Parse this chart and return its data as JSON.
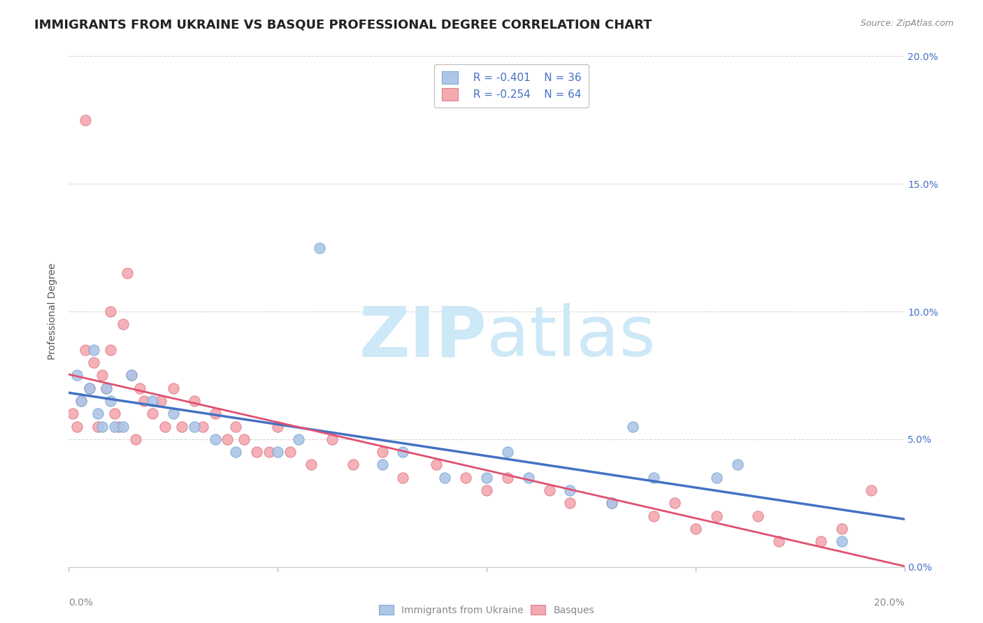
{
  "title": "IMMIGRANTS FROM UKRAINE VS BASQUE PROFESSIONAL DEGREE CORRELATION CHART",
  "source": "Source: ZipAtlas.com",
  "ylabel_left": "Professional Degree",
  "x_tick_labels": [
    "0.0%",
    "5.0%",
    "10.0%",
    "15.0%",
    "20.0%"
  ],
  "x_tick_values": [
    0.0,
    5.0,
    10.0,
    15.0,
    20.0
  ],
  "y_tick_labels": [
    "0.0%",
    "5.0%",
    "10.0%",
    "15.0%",
    "20.0%"
  ],
  "y_tick_values": [
    0.0,
    5.0,
    10.0,
    15.0,
    20.0
  ],
  "xlim": [
    0.0,
    20.0
  ],
  "ylim": [
    0.0,
    20.0
  ],
  "legend_entries": [
    {
      "label": "Immigrants from Ukraine",
      "R": "-0.401",
      "N": "36",
      "color": "#aec6e8"
    },
    {
      "label": "Basques",
      "R": "-0.254",
      "N": "64",
      "color": "#f4a9b0"
    }
  ],
  "ukraine_scatter_x": [
    0.2,
    0.3,
    0.5,
    0.6,
    0.7,
    0.8,
    0.9,
    1.0,
    1.1,
    1.3,
    1.5,
    2.0,
    2.5,
    3.0,
    3.5,
    4.0,
    5.0,
    5.5,
    6.0,
    7.5,
    8.0,
    9.0,
    10.0,
    10.5,
    11.0,
    12.0,
    13.0,
    13.5,
    14.0,
    15.5,
    16.0,
    18.5
  ],
  "ukraine_scatter_y": [
    7.5,
    6.5,
    7.0,
    8.5,
    6.0,
    5.5,
    7.0,
    6.5,
    5.5,
    5.5,
    7.5,
    6.5,
    6.0,
    5.5,
    5.0,
    4.5,
    4.5,
    5.0,
    12.5,
    4.0,
    4.5,
    3.5,
    3.5,
    4.5,
    3.5,
    3.0,
    2.5,
    5.5,
    3.5,
    3.5,
    4.0,
    1.0
  ],
  "basque_scatter_x": [
    0.1,
    0.2,
    0.3,
    0.4,
    0.4,
    0.5,
    0.6,
    0.7,
    0.8,
    0.9,
    1.0,
    1.0,
    1.1,
    1.2,
    1.3,
    1.4,
    1.5,
    1.6,
    1.7,
    1.8,
    2.0,
    2.2,
    2.3,
    2.5,
    2.7,
    3.0,
    3.2,
    3.5,
    3.8,
    4.0,
    4.2,
    4.5,
    4.8,
    5.0,
    5.3,
    5.8,
    6.3,
    6.8,
    7.5,
    8.0,
    8.8,
    9.5,
    10.0,
    10.5,
    11.5,
    12.0,
    13.0,
    14.0,
    14.5,
    15.0,
    15.5,
    16.5,
    17.0,
    18.0,
    18.5,
    19.2
  ],
  "basque_scatter_y": [
    6.0,
    5.5,
    6.5,
    8.5,
    17.5,
    7.0,
    8.0,
    5.5,
    7.5,
    7.0,
    10.0,
    8.5,
    6.0,
    5.5,
    9.5,
    11.5,
    7.5,
    5.0,
    7.0,
    6.5,
    6.0,
    6.5,
    5.5,
    7.0,
    5.5,
    6.5,
    5.5,
    6.0,
    5.0,
    5.5,
    5.0,
    4.5,
    4.5,
    5.5,
    4.5,
    4.0,
    5.0,
    4.0,
    4.5,
    3.5,
    4.0,
    3.5,
    3.0,
    3.5,
    3.0,
    2.5,
    2.5,
    2.0,
    2.5,
    1.5,
    2.0,
    2.0,
    1.0,
    1.0,
    1.5,
    3.0
  ],
  "ukraine_color": "#aec6e8",
  "ukraine_edge_color": "#7aabd4",
  "ukraine_line_color": "#4472c4",
  "basque_color": "#f4a9b0",
  "basque_edge_color": "#e08090",
  "basque_line_color": "#e05070",
  "background_color": "#ffffff",
  "watermark_zip": "ZIP",
  "watermark_atlas": "atlas",
  "watermark_color": "#cde8f7",
  "title_fontsize": 13,
  "axis_label_fontsize": 10,
  "tick_fontsize": 10,
  "right_tick_color": "#4472c4",
  "grid_color": "#cccccc"
}
